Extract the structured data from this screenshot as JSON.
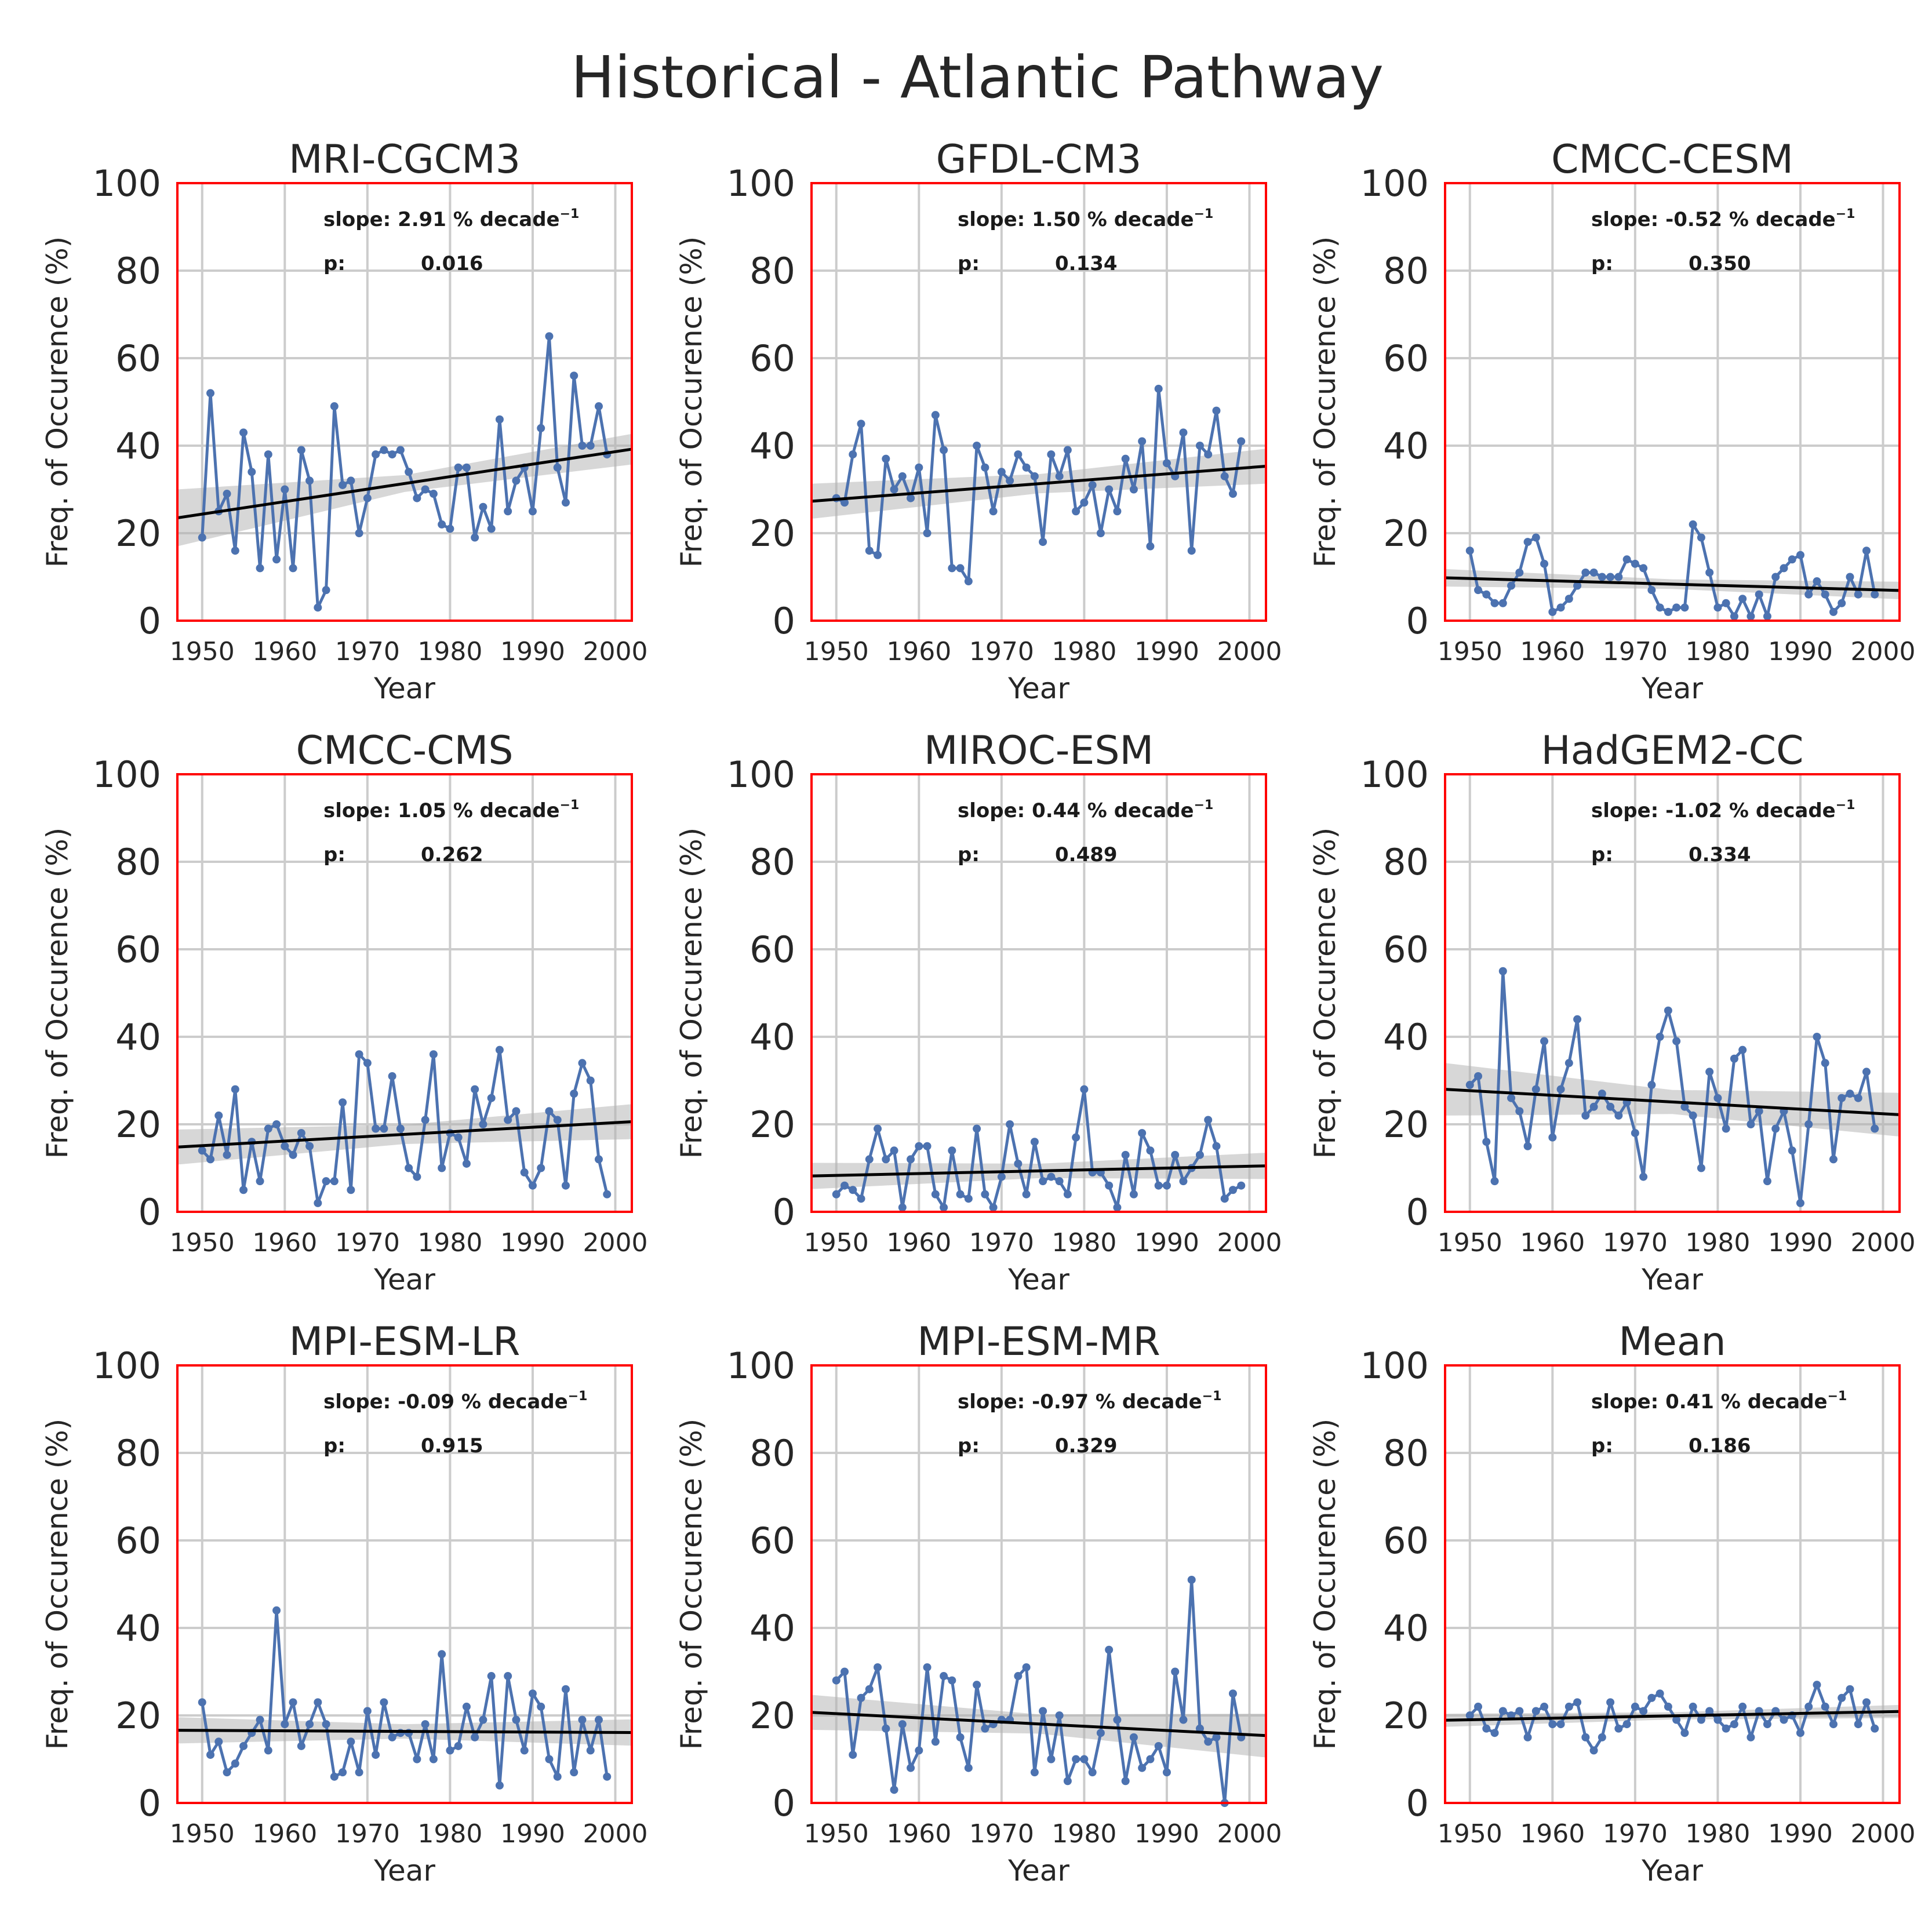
{
  "title": "Historical - Atlantic Pathway",
  "chart_data": [
    {
      "type": "line",
      "title": "MRI-CGCM3",
      "xlabel": "Year",
      "ylabel": "Freq. of Occurence (%)",
      "xlim": [
        1947,
        2002
      ],
      "ylim": [
        0,
        100
      ],
      "xticks": [
        1950,
        1960,
        1970,
        1980,
        1990,
        2000
      ],
      "yticks": [
        0,
        20,
        40,
        60,
        80,
        100
      ],
      "x_start": 1950,
      "values": [
        19,
        52,
        25,
        29,
        16,
        43,
        34,
        12,
        38,
        14,
        30,
        12,
        39,
        32,
        3,
        7,
        49,
        31,
        32,
        20,
        28,
        38,
        39,
        38,
        39,
        34,
        28,
        30,
        29,
        22,
        21,
        35,
        35,
        19,
        26,
        21,
        46,
        25,
        32,
        35,
        25,
        44,
        65,
        35,
        27,
        56,
        40,
        40,
        49,
        38
      ],
      "slope_label": "slope: 2.91 % decade",
      "p_label": "p:",
      "p_value": "0.016",
      "trend": [
        23.5,
        39.2
      ],
      "band": [
        6.5,
        3.5
      ]
    },
    {
      "type": "line",
      "title": "GFDL-CM3",
      "xlabel": "Year",
      "ylabel": "Freq. of Occurence (%)",
      "xlim": [
        1947,
        2002
      ],
      "ylim": [
        0,
        100
      ],
      "xticks": [
        1950,
        1960,
        1970,
        1980,
        1990,
        2000
      ],
      "yticks": [
        0,
        20,
        40,
        60,
        80,
        100
      ],
      "x_start": 1950,
      "values": [
        28,
        27,
        38,
        45,
        16,
        15,
        37,
        30,
        33,
        28,
        35,
        20,
        47,
        39,
        12,
        12,
        9,
        40,
        35,
        25,
        34,
        32,
        38,
        35,
        33,
        18,
        38,
        33,
        39,
        25,
        27,
        31,
        20,
        30,
        25,
        37,
        30,
        41,
        17,
        53,
        36,
        33,
        43,
        16,
        40,
        38,
        48,
        33,
        29,
        41
      ],
      "slope_label": "slope: 1.50 % decade",
      "p_label": "p:",
      "p_value": "0.134",
      "trend": [
        27.3,
        35.3
      ],
      "band": [
        4,
        4
      ]
    },
    {
      "type": "line",
      "title": "CMCC-CESM",
      "xlabel": "Year",
      "ylabel": "Freq. of Occurence (%)",
      "xlim": [
        1947,
        2002
      ],
      "ylim": [
        0,
        100
      ],
      "xticks": [
        1950,
        1960,
        1970,
        1980,
        1990,
        2000
      ],
      "yticks": [
        0,
        20,
        40,
        60,
        80,
        100
      ],
      "x_start": 1950,
      "values": [
        16,
        7,
        6,
        4,
        4,
        8,
        11,
        18,
        19,
        13,
        2,
        3,
        5,
        8,
        11,
        11,
        10,
        10,
        10,
        14,
        13,
        12,
        7,
        3,
        2,
        3,
        3,
        22,
        19,
        11,
        3,
        4,
        1,
        5,
        1,
        6,
        1,
        10,
        12,
        14,
        15,
        6,
        9,
        6,
        2,
        4,
        10,
        6,
        16,
        6
      ],
      "slope_label": "slope: -0.52 % decade",
      "p_label": "p:",
      "p_value": "0.350",
      "trend": [
        9.8,
        6.9
      ],
      "band": [
        2,
        2
      ]
    },
    {
      "type": "line",
      "title": "CMCC-CMS",
      "xlabel": "Year",
      "ylabel": "Freq. of Occurence (%)",
      "xlim": [
        1947,
        2002
      ],
      "ylim": [
        0,
        100
      ],
      "xticks": [
        1950,
        1960,
        1970,
        1980,
        1990,
        2000
      ],
      "yticks": [
        0,
        20,
        40,
        60,
        80,
        100
      ],
      "x_start": 1950,
      "values": [
        14,
        12,
        22,
        13,
        28,
        5,
        16,
        7,
        19,
        20,
        15,
        13,
        18,
        15,
        2,
        7,
        7,
        25,
        5,
        36,
        34,
        19,
        19,
        31,
        19,
        10,
        8,
        21,
        36,
        10,
        18,
        17,
        11,
        28,
        20,
        26,
        37,
        21,
        23,
        9,
        6,
        10,
        23,
        21,
        6,
        27,
        34,
        30,
        12,
        4
      ],
      "slope_label": "slope: 1.05 % decade",
      "p_label": "p:",
      "p_value": "0.262",
      "trend": [
        14.8,
        20.6
      ],
      "band": [
        4,
        4
      ]
    },
    {
      "type": "line",
      "title": "MIROC-ESM",
      "xlabel": "Year",
      "ylabel": "Freq. of Occurence (%)",
      "xlim": [
        1947,
        2002
      ],
      "ylim": [
        0,
        100
      ],
      "xticks": [
        1950,
        1960,
        1970,
        1980,
        1990,
        2000
      ],
      "yticks": [
        0,
        20,
        40,
        60,
        80,
        100
      ],
      "x_start": 1950,
      "values": [
        4,
        6,
        5,
        3,
        12,
        19,
        12,
        14,
        1,
        12,
        15,
        15,
        4,
        1,
        14,
        4,
        3,
        19,
        4,
        1,
        8,
        20,
        11,
        4,
        16,
        7,
        8,
        7,
        4,
        17,
        28,
        9,
        9,
        6,
        1,
        13,
        4,
        18,
        14,
        6,
        6,
        13,
        7,
        10,
        13,
        21,
        15,
        3,
        5,
        6
      ],
      "slope_label": "slope: 0.44 % decade",
      "p_label": "p:",
      "p_value": "0.489",
      "trend": [
        8.2,
        10.5
      ],
      "band": [
        3,
        3
      ]
    },
    {
      "type": "line",
      "title": "HadGEM2-CC",
      "xlabel": "Year",
      "ylabel": "Freq. of Occurence (%)",
      "xlim": [
        1947,
        2002
      ],
      "ylim": [
        0,
        100
      ],
      "xticks": [
        1950,
        1960,
        1970,
        1980,
        1990,
        2000
      ],
      "yticks": [
        0,
        20,
        40,
        60,
        80,
        100
      ],
      "x_start": 1950,
      "values": [
        29,
        31,
        16,
        7,
        55,
        26,
        23,
        15,
        28,
        39,
        17,
        28,
        34,
        44,
        22,
        24,
        27,
        24,
        22,
        25,
        18,
        8,
        29,
        40,
        46,
        39,
        24,
        22,
        10,
        32,
        26,
        19,
        35,
        37,
        20,
        23,
        7,
        19,
        23,
        14,
        2,
        20,
        40,
        34,
        12,
        26,
        27,
        26,
        32,
        19
      ],
      "slope_label": "slope: -1.02 % decade",
      "p_label": "p:",
      "p_value": "0.334",
      "trend": [
        28.0,
        22.2
      ],
      "band": [
        6,
        5
      ]
    },
    {
      "type": "line",
      "title": "MPI-ESM-LR",
      "xlabel": "Year",
      "ylabel": "Freq. of Occurence (%)",
      "xlim": [
        1947,
        2002
      ],
      "ylim": [
        0,
        100
      ],
      "xticks": [
        1950,
        1960,
        1970,
        1980,
        1990,
        2000
      ],
      "yticks": [
        0,
        20,
        40,
        60,
        80,
        100
      ],
      "x_start": 1950,
      "values": [
        23,
        11,
        14,
        7,
        9,
        13,
        16,
        19,
        12,
        44,
        18,
        23,
        13,
        18,
        23,
        18,
        6,
        7,
        14,
        7,
        21,
        11,
        23,
        15,
        16,
        16,
        10,
        18,
        10,
        34,
        12,
        13,
        22,
        15,
        19,
        29,
        4,
        29,
        19,
        12,
        25,
        22,
        10,
        6,
        26,
        7,
        19,
        12,
        19,
        6
      ],
      "slope_label": "slope: -0.09 % decade",
      "p_label": "p:",
      "p_value": "0.915",
      "trend": [
        16.6,
        16.1
      ],
      "band": [
        3,
        3
      ]
    },
    {
      "type": "line",
      "title": "MPI-ESM-MR",
      "xlabel": "Year",
      "ylabel": "Freq. of Occurence (%)",
      "xlim": [
        1947,
        2002
      ],
      "ylim": [
        0,
        100
      ],
      "xticks": [
        1950,
        1960,
        1970,
        1980,
        1990,
        2000
      ],
      "yticks": [
        0,
        20,
        40,
        60,
        80,
        100
      ],
      "x_start": 1950,
      "values": [
        28,
        30,
        11,
        24,
        26,
        31,
        17,
        3,
        18,
        8,
        12,
        31,
        14,
        29,
        28,
        15,
        8,
        27,
        17,
        18,
        19,
        19,
        29,
        31,
        7,
        21,
        10,
        20,
        5,
        10,
        10,
        7,
        16,
        35,
        19,
        5,
        15,
        8,
        10,
        13,
        7,
        30,
        19,
        51,
        17,
        14,
        15,
        0,
        25,
        15
      ],
      "slope_label": "slope: -0.97 % decade",
      "p_label": "p:",
      "p_value": "0.329",
      "trend": [
        20.7,
        15.4
      ],
      "band": [
        4,
        5
      ]
    },
    {
      "type": "line",
      "title": "Mean",
      "xlabel": "Year",
      "ylabel": "Freq. of Occurence (%)",
      "xlim": [
        1947,
        2002
      ],
      "ylim": [
        0,
        100
      ],
      "xticks": [
        1950,
        1960,
        1970,
        1980,
        1990,
        2000
      ],
      "yticks": [
        0,
        20,
        40,
        60,
        80,
        100
      ],
      "x_start": 1950,
      "values": [
        20,
        22,
        17,
        16,
        21,
        20,
        21,
        15,
        21,
        22,
        18,
        18,
        22,
        23,
        15,
        12,
        15,
        23,
        17,
        18,
        22,
        21,
        24,
        25,
        22,
        19,
        16,
        22,
        19,
        21,
        19,
        17,
        18,
        22,
        15,
        21,
        18,
        21,
        19,
        20,
        16,
        22,
        27,
        22,
        18,
        24,
        26,
        18,
        23,
        17
      ],
      "slope_label": "slope: 0.41 % decade",
      "p_label": "p:",
      "p_value": "0.186",
      "trend": [
        18.9,
        20.9
      ],
      "band": [
        1.5,
        1.5
      ]
    }
  ]
}
